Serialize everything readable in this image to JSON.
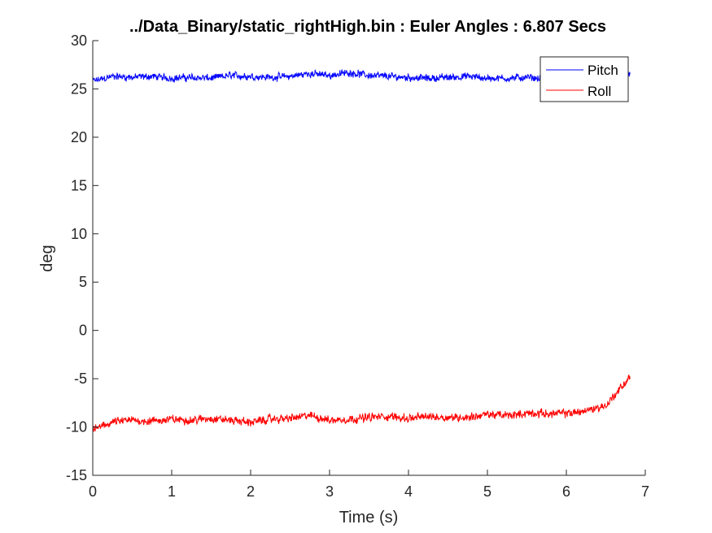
{
  "chart_data": {
    "type": "line",
    "title": "../Data_Binary/static_rightHigh.bin : Euler Angles : 6.807 Secs",
    "xlabel": "Time (s)",
    "ylabel": "deg",
    "xlim": [
      0,
      7
    ],
    "ylim": [
      -15,
      30
    ],
    "xticks": [
      "0",
      "1",
      "2",
      "3",
      "4",
      "5",
      "6",
      "7"
    ],
    "yticks": [
      "-15",
      "-10",
      "-5",
      "0",
      "5",
      "10",
      "15",
      "20",
      "25",
      "30"
    ],
    "grid": false,
    "legend_position": "top-right",
    "series": [
      {
        "name": "Pitch",
        "color": "#0000ff",
        "x": [
          0,
          0.25,
          0.5,
          0.75,
          1.0,
          1.25,
          1.5,
          1.75,
          2.0,
          2.25,
          2.5,
          2.75,
          3.0,
          3.25,
          3.5,
          3.75,
          4.0,
          4.25,
          4.5,
          4.75,
          5.0,
          5.25,
          5.5,
          5.75,
          6.0,
          6.25,
          6.5,
          6.807
        ],
        "y": [
          25.8,
          26.3,
          26.2,
          26.3,
          26.1,
          26.2,
          26.1,
          26.4,
          26.3,
          26.2,
          26.3,
          26.6,
          26.4,
          26.7,
          26.4,
          26.3,
          26.2,
          26.1,
          26.2,
          26.3,
          26.1,
          26.1,
          26.2,
          26.0,
          26.1,
          26.0,
          26.2,
          26.7
        ]
      },
      {
        "name": "Roll",
        "color": "#ff0000",
        "x": [
          0,
          0.25,
          0.5,
          0.75,
          1.0,
          1.25,
          1.5,
          1.75,
          2.0,
          2.25,
          2.5,
          2.75,
          3.0,
          3.25,
          3.5,
          3.75,
          4.0,
          4.25,
          4.5,
          4.75,
          5.0,
          5.25,
          5.5,
          5.75,
          6.0,
          6.25,
          6.5,
          6.807
        ],
        "y": [
          -10.3,
          -9.5,
          -9.3,
          -9.4,
          -9.2,
          -9.3,
          -9.1,
          -9.3,
          -9.5,
          -9.2,
          -9.1,
          -8.8,
          -9.3,
          -9.2,
          -9.0,
          -8.9,
          -9.1,
          -8.9,
          -9.0,
          -9.0,
          -8.7,
          -8.8,
          -8.6,
          -8.6,
          -8.6,
          -8.3,
          -7.8,
          -4.8
        ]
      }
    ]
  }
}
